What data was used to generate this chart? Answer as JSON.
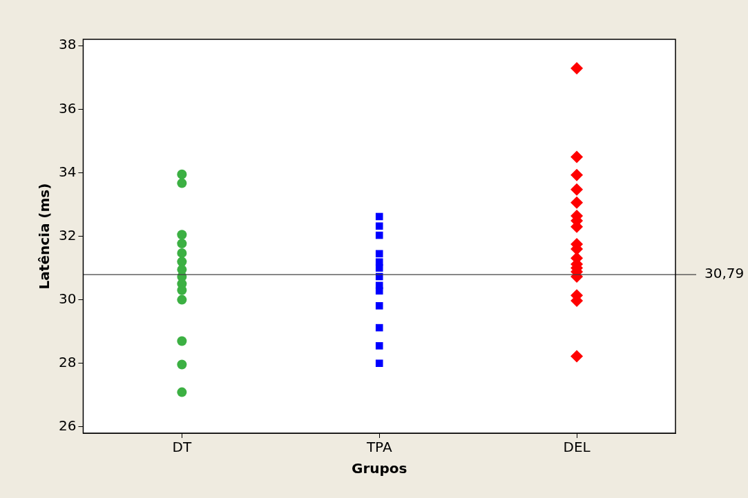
{
  "chart_data": {
    "type": "scatter",
    "xlabel": "Grupos",
    "ylabel": "Latência (ms)",
    "categories": [
      "DT",
      "TPA",
      "DEL"
    ],
    "ylim": [
      25.8,
      38.2
    ],
    "yticks": [
      26,
      28,
      30,
      32,
      34,
      36,
      38
    ],
    "grid": false,
    "legend": false,
    "ref_lines": [
      {
        "axis": "y",
        "value": 30.79,
        "label": "30,79",
        "color": "#404040"
      }
    ],
    "series": [
      {
        "color": "#3cb043",
        "marker": "circle",
        "x": [
          "DT",
          "DT",
          "DT",
          "DT",
          "DT",
          "DT",
          "DT",
          "DT",
          "DT",
          "DT",
          "DT",
          "DT",
          "DT",
          "DT"
        ],
        "values": [
          33.95,
          33.67,
          32.05,
          31.77,
          31.47,
          31.2,
          30.95,
          30.73,
          30.5,
          30.3,
          30.0,
          28.7,
          27.96,
          27.09
        ]
      },
      {
        "color": "#0000ff",
        "marker": "square",
        "x": [
          "TPA",
          "TPA",
          "TPA",
          "TPA",
          "TPA",
          "TPA",
          "TPA",
          "TPA",
          "TPA",
          "TPA",
          "TPA",
          "TPA",
          "TPA"
        ],
        "values": [
          32.62,
          32.32,
          32.03,
          31.45,
          31.19,
          31.0,
          30.73,
          30.45,
          30.28,
          29.81,
          29.12,
          28.55,
          28.0
        ]
      },
      {
        "color": "#ff0000",
        "marker": "diamond",
        "x": [
          "DEL",
          "DEL",
          "DEL",
          "DEL",
          "DEL",
          "DEL",
          "DEL",
          "DEL",
          "DEL",
          "DEL",
          "DEL",
          "DEL",
          "DEL",
          "DEL",
          "DEL",
          "DEL",
          "DEL",
          "DEL"
        ],
        "values": [
          37.29,
          34.5,
          33.93,
          33.47,
          33.06,
          32.64,
          32.49,
          32.3,
          31.75,
          31.6,
          31.31,
          31.12,
          31.0,
          30.88,
          30.73,
          30.14,
          29.97,
          28.22
        ]
      }
    ]
  }
}
